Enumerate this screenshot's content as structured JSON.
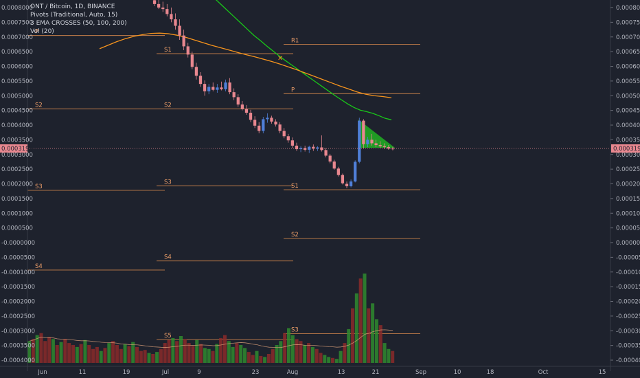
{
  "legend": {
    "line1": "ONT / Bitcoin, 1D, BINANCE",
    "line2": "Pivots (Traditional, Auto, 15)",
    "line3": "3 EMA CROSSES (50, 100, 200)",
    "line4": "Vol (20)"
  },
  "price_tag": "0.0003193",
  "colors": {
    "background": "#1e222d",
    "up": "#4f7fd8",
    "down": "#e8878f",
    "ema_green": "#19c819",
    "ema_orange": "#f7941d",
    "pivot": "#c8814a",
    "vol_up": "#2f8a2f",
    "vol_down": "#8b2a2a",
    "triangle": "#21c321"
  },
  "chart_data": {
    "type": "candlestick",
    "title": "ONT / Bitcoin, 1D, BINANCE",
    "xlabel": "",
    "ylabel": "",
    "x_ticks": [
      "Jun",
      "11",
      "19",
      "Jul",
      "9",
      "23",
      "Aug",
      "13",
      "21",
      "Sep",
      "10",
      "18",
      "Oct",
      "15"
    ],
    "y_ticks": [
      "0.0008000",
      "0.0007500",
      "0.0007000",
      "0.0006500",
      "0.0006000",
      "0.0005500",
      "0.0005000",
      "0.0004500",
      "0.0004000",
      "0.0003500",
      "0.0003000",
      "0.0002500",
      "0.0002000",
      "0.0001500",
      "0.0001000",
      "0.0000500",
      "0.0000000",
      "-0.0000500",
      "-0.0001000",
      "-0.0001500",
      "-0.0002000",
      "-0.0002500",
      "-0.0003000",
      "-0.0003500",
      "-0.0004000"
    ],
    "y_ticks_left": [
      "0.0008000",
      "0.0007500",
      "0.0007000",
      "0.0006500",
      "0.0006000",
      "0.0005500",
      "0.0005000",
      "0.0004500",
      "0.0004000",
      "0.0003500",
      "0.0003000",
      "0.0002500",
      "0.0002000",
      "0.0001500",
      "0.0001000",
      "0.0000500",
      "-0.0000000",
      "-0.0000500",
      "-0.0001000",
      "-0.0001500",
      "-0.0002000",
      "-0.0002500",
      "-0.0003000",
      "-0.0003500",
      "-0.0004000"
    ],
    "ylim": [
      -0.00042,
      0.00083
    ],
    "last_price": 0.0003193,
    "candles": [
      {
        "o": 0.000825,
        "h": 0.000835,
        "l": 0.000805,
        "c": 0.000812
      },
      {
        "o": 0.000812,
        "h": 0.00083,
        "l": 0.000795,
        "c": 0.0008
      },
      {
        "o": 0.0008,
        "h": 0.00082,
        "l": 0.000785,
        "c": 0.000795
      },
      {
        "o": 0.000795,
        "h": 0.000812,
        "l": 0.00077,
        "c": 0.000778
      },
      {
        "o": 0.000778,
        "h": 0.0008,
        "l": 0.00075,
        "c": 0.00076
      },
      {
        "o": 0.00076,
        "h": 0.00078,
        "l": 0.000725,
        "c": 0.000738
      },
      {
        "o": 0.000738,
        "h": 0.00076,
        "l": 0.00069,
        "c": 0.000705
      },
      {
        "o": 0.000705,
        "h": 0.000725,
        "l": 0.000655,
        "c": 0.000668
      },
      {
        "o": 0.000668,
        "h": 0.00068,
        "l": 0.00063,
        "c": 0.00064
      },
      {
        "o": 0.00064,
        "h": 0.00065,
        "l": 0.00059,
        "c": 0.000598
      },
      {
        "o": 0.000598,
        "h": 0.000612,
        "l": 0.000555,
        "c": 0.000568
      },
      {
        "o": 0.000568,
        "h": 0.00058,
        "l": 0.00053,
        "c": 0.00054
      },
      {
        "o": 0.00054,
        "h": 0.000552,
        "l": 0.0005,
        "c": 0.000515
      },
      {
        "o": 0.000515,
        "h": 0.00054,
        "l": 0.000505,
        "c": 0.00053
      },
      {
        "o": 0.00053,
        "h": 0.000545,
        "l": 0.000515,
        "c": 0.00052
      },
      {
        "o": 0.00052,
        "h": 0.00054,
        "l": 0.00051,
        "c": 0.000528
      },
      {
        "o": 0.000528,
        "h": 0.000548,
        "l": 0.000518,
        "c": 0.000522
      },
      {
        "o": 0.000522,
        "h": 0.000555,
        "l": 0.000515,
        "c": 0.000545
      },
      {
        "o": 0.000545,
        "h": 0.00056,
        "l": 0.000505,
        "c": 0.000512
      },
      {
        "o": 0.000512,
        "h": 0.000525,
        "l": 0.000485,
        "c": 0.000495
      },
      {
        "o": 0.000495,
        "h": 0.000505,
        "l": 0.000462,
        "c": 0.00047
      },
      {
        "o": 0.00047,
        "h": 0.000482,
        "l": 0.00045,
        "c": 0.000455
      },
      {
        "o": 0.000455,
        "h": 0.000468,
        "l": 0.000435,
        "c": 0.000442
      },
      {
        "o": 0.000442,
        "h": 0.000452,
        "l": 0.00041,
        "c": 0.000418
      },
      {
        "o": 0.000418,
        "h": 0.00043,
        "l": 0.00039,
        "c": 0.000398
      },
      {
        "o": 0.000398,
        "h": 0.00041,
        "l": 0.000372,
        "c": 0.00038
      },
      {
        "o": 0.00038,
        "h": 0.000428,
        "l": 0.000372,
        "c": 0.00042
      },
      {
        "o": 0.00042,
        "h": 0.00044,
        "l": 0.000408,
        "c": 0.000425
      },
      {
        "o": 0.000425,
        "h": 0.000432,
        "l": 0.000405,
        "c": 0.000412
      },
      {
        "o": 0.000412,
        "h": 0.00042,
        "l": 0.000395,
        "c": 0.000402
      },
      {
        "o": 0.000402,
        "h": 0.00041,
        "l": 0.000372,
        "c": 0.00038
      },
      {
        "o": 0.00038,
        "h": 0.00039,
        "l": 0.000355,
        "c": 0.000362
      },
      {
        "o": 0.000362,
        "h": 0.00037,
        "l": 0.00034,
        "c": 0.000348
      },
      {
        "o": 0.000348,
        "h": 0.000358,
        "l": 0.000322,
        "c": 0.00033
      },
      {
        "o": 0.00033,
        "h": 0.00034,
        "l": 0.000312,
        "c": 0.000318
      },
      {
        "o": 0.000318,
        "h": 0.000328,
        "l": 0.000308,
        "c": 0.000322
      },
      {
        "o": 0.000322,
        "h": 0.00033,
        "l": 0.00031,
        "c": 0.000316
      },
      {
        "o": 0.000316,
        "h": 0.00033,
        "l": 0.000305,
        "c": 0.000326
      },
      {
        "o": 0.000326,
        "h": 0.000334,
        "l": 0.000312,
        "c": 0.00032
      },
      {
        "o": 0.00032,
        "h": 0.000328,
        "l": 0.000312,
        "c": 0.000324
      },
      {
        "o": 0.000324,
        "h": 0.000365,
        "l": 0.00031,
        "c": 0.000315
      },
      {
        "o": 0.000315,
        "h": 0.000322,
        "l": 0.00029,
        "c": 0.000296
      },
      {
        "o": 0.000296,
        "h": 0.000302,
        "l": 0.00027,
        "c": 0.000276
      },
      {
        "o": 0.000276,
        "h": 0.000282,
        "l": 0.000248,
        "c": 0.000252
      },
      {
        "o": 0.000252,
        "h": 0.000258,
        "l": 0.000225,
        "c": 0.00023
      },
      {
        "o": 0.00023,
        "h": 0.000235,
        "l": 0.000198,
        "c": 0.000202
      },
      {
        "o": 0.0002,
        "h": 0.000208,
        "l": 0.000185,
        "c": 0.000192
      },
      {
        "o": 0.000192,
        "h": 0.000215,
        "l": 0.000188,
        "c": 0.000208
      },
      {
        "o": 0.000208,
        "h": 0.00028,
        "l": 0.000205,
        "c": 0.000275
      },
      {
        "o": 0.000275,
        "h": 0.000425,
        "l": 0.00027,
        "c": 0.000415
      },
      {
        "o": 0.000415,
        "h": 0.00042,
        "l": 0.00032,
        "c": 0.000335
      },
      {
        "o": 0.000335,
        "h": 0.00036,
        "l": 0.000325,
        "c": 0.00035
      },
      {
        "o": 0.00035,
        "h": 0.00037,
        "l": 0.00033,
        "c": 0.000338
      },
      {
        "o": 0.000338,
        "h": 0.00035,
        "l": 0.000325,
        "c": 0.000332
      },
      {
        "o": 0.000332,
        "h": 0.000345,
        "l": 0.000322,
        "c": 0.000328
      },
      {
        "o": 0.000328,
        "h": 0.000338,
        "l": 0.000318,
        "c": 0.000325
      },
      {
        "o": 0.000325,
        "h": 0.000332,
        "l": 0.000316,
        "c": 0.00032
      },
      {
        "o": 0.00032,
        "h": 0.000326,
        "l": 0.000314,
        "c": 0.000319
      }
    ],
    "ema_green": [
      0.000885,
      0.000865,
      0.000845,
      0.000825,
      0.000805,
      0.000785,
      0.000765,
      0.000745,
      0.000725,
      0.000705,
      0.000688,
      0.00067,
      0.000653,
      0.000636,
      0.00062,
      0.000605,
      0.00059,
      0.000575,
      0.00056,
      0.000545,
      0.00053,
      0.000515,
      0.0005,
      0.000486,
      0.000472,
      0.00046,
      0.000451,
      0.000446,
      0.00044,
      0.000432,
      0.000423,
      0.000418
    ],
    "ema_orange": [
      0.00066,
      0.000672,
      0.000684,
      0.000694,
      0.000702,
      0.000708,
      0.000712,
      0.000713,
      0.000711,
      0.000706,
      0.000699,
      0.00069,
      0.000681,
      0.000672,
      0.000664,
      0.000656,
      0.000648,
      0.00064,
      0.000633,
      0.000625,
      0.000617,
      0.000608,
      0.000598,
      0.000588,
      0.000577,
      0.000566,
      0.000555,
      0.000544,
      0.000533,
      0.000523,
      0.000513,
      0.000505,
      0.0005,
      0.000497,
      0.000493
    ],
    "pivot_levels": [
      {
        "label": "P",
        "value": 0.000705,
        "segment": 1
      },
      {
        "label": "S1",
        "value": 0.000643,
        "segment": 2
      },
      {
        "label": "S2",
        "value": 0.000455,
        "segment": 1
      },
      {
        "label": "S2",
        "value": 0.000455,
        "segment": 2
      },
      {
        "label": "S3",
        "value": 0.000178,
        "segment": 1
      },
      {
        "label": "S3",
        "value": 0.000193,
        "segment": 2
      },
      {
        "label": "S4",
        "value": -9.35e-05,
        "segment": 1
      },
      {
        "label": "S4",
        "value": -6.25e-05,
        "segment": 2
      },
      {
        "label": "S5",
        "value": -0.00033,
        "segment": 2
      },
      {
        "label": "R1",
        "value": 0.000675,
        "segment": 3
      },
      {
        "label": "P",
        "value": 0.000507,
        "segment": 3
      },
      {
        "label": "S1",
        "value": 0.00018,
        "segment": 3
      },
      {
        "label": "S2",
        "value": 1.35e-05,
        "segment": 3
      },
      {
        "label": "S3",
        "value": -0.00031,
        "segment": 3
      }
    ],
    "volume": [
      22,
      24,
      28,
      30,
      22,
      26,
      24,
      18,
      21,
      24,
      20,
      18,
      16,
      19,
      23,
      18,
      14,
      16,
      12,
      15,
      20,
      22,
      18,
      14,
      19,
      17,
      21,
      16,
      12,
      13,
      10,
      9,
      11,
      14,
      20,
      23,
      25,
      22,
      27,
      24,
      20,
      17,
      23,
      19,
      15,
      14,
      12,
      19,
      25,
      28,
      22,
      16,
      20,
      18,
      15,
      11,
      8,
      12,
      7,
      6,
      9,
      14,
      18,
      22,
      30,
      35,
      28,
      24,
      22,
      18,
      20,
      16,
      14,
      10,
      8,
      6,
      5,
      4,
      12,
      20,
      34,
      55,
      70,
      85,
      90,
      55,
      60,
      44,
      38,
      20,
      14,
      12
    ]
  }
}
